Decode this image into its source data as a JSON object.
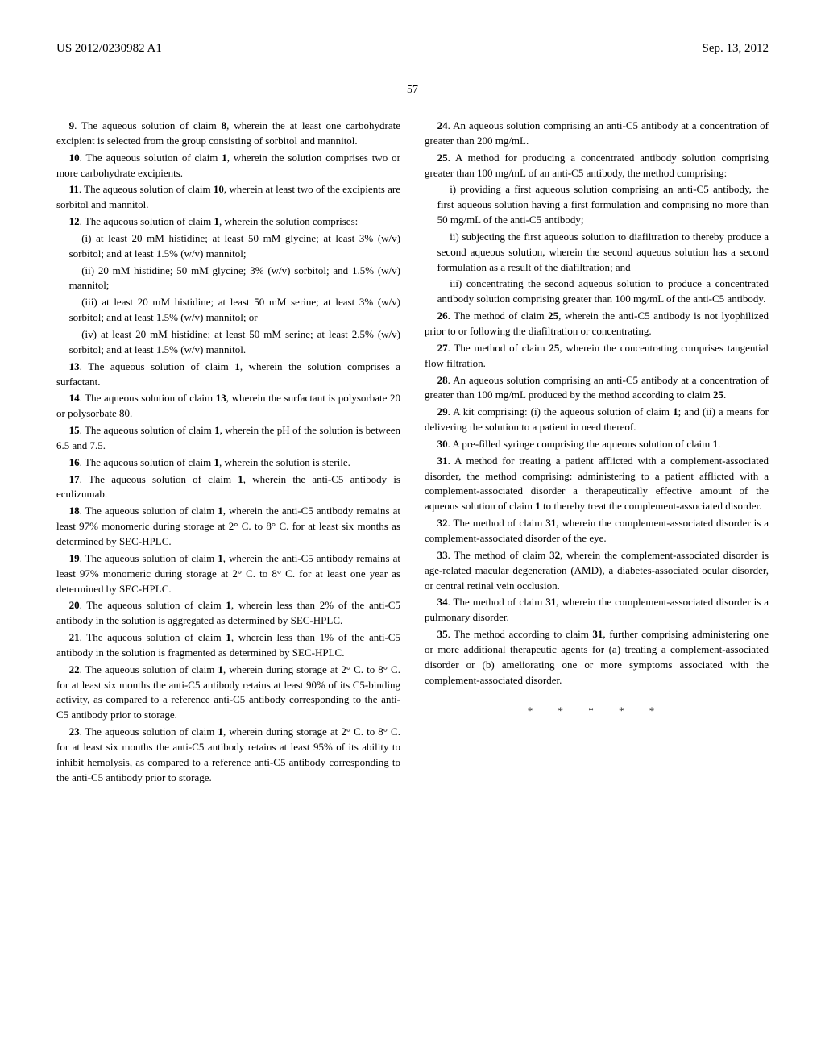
{
  "header": {
    "left": "US 2012/0230982 A1",
    "right": "Sep. 13, 2012"
  },
  "page_number": "57",
  "columns": {
    "left": [
      {
        "type": "claim",
        "num": "9",
        "text": ". The aqueous solution of claim ",
        "ref": "8",
        "tail": ", wherein the at least one carbohydrate excipient is selected from the group consisting of sorbitol and mannitol."
      },
      {
        "type": "claim",
        "num": "10",
        "text": ". The aqueous solution of claim ",
        "ref": "1",
        "tail": ", wherein the solution comprises two or more carbohydrate excipients."
      },
      {
        "type": "claim",
        "num": "11",
        "text": ". The aqueous solution of claim ",
        "ref": "10",
        "tail": ", wherein at least two of the excipients are sorbitol and mannitol."
      },
      {
        "type": "claim",
        "num": "12",
        "text": ". The aqueous solution of claim ",
        "ref": "1",
        "tail": ", wherein the solution comprises:"
      },
      {
        "type": "sub",
        "text": "(i) at least 20 mM histidine; at least 50 mM glycine; at least 3% (w/v) sorbitol; and at least 1.5% (w/v) mannitol;"
      },
      {
        "type": "sub",
        "text": "(ii) 20 mM histidine; 50 mM glycine; 3% (w/v) sorbitol; and 1.5% (w/v) mannitol;"
      },
      {
        "type": "sub",
        "text": "(iii) at least 20 mM histidine; at least 50 mM serine; at least 3% (w/v) sorbitol; and at least 1.5% (w/v) mannitol; or"
      },
      {
        "type": "sub",
        "text": "(iv) at least 20 mM histidine; at least 50 mM serine; at least 2.5% (w/v) sorbitol; and at least 1.5% (w/v) mannitol."
      },
      {
        "type": "claim",
        "num": "13",
        "text": ". The aqueous solution of claim ",
        "ref": "1",
        "tail": ", wherein the solution comprises a surfactant."
      },
      {
        "type": "claim",
        "num": "14",
        "text": ". The aqueous solution of claim ",
        "ref": "13",
        "tail": ", wherein the surfactant is polysorbate 20 or polysorbate 80."
      },
      {
        "type": "claim",
        "num": "15",
        "text": ". The aqueous solution of claim ",
        "ref": "1",
        "tail": ", wherein the pH of the solution is between 6.5 and 7.5."
      },
      {
        "type": "claim",
        "num": "16",
        "text": ". The aqueous solution of claim ",
        "ref": "1",
        "tail": ", wherein the solution is sterile."
      },
      {
        "type": "claim",
        "num": "17",
        "text": ". The aqueous solution of claim ",
        "ref": "1",
        "tail": ", wherein the anti-C5 antibody is eculizumab."
      },
      {
        "type": "claim",
        "num": "18",
        "text": ". The aqueous solution of claim ",
        "ref": "1",
        "tail": ", wherein the anti-C5 antibody remains at least 97% monomeric during storage at 2° C. to 8° C. for at least six months as determined by SEC-HPLC."
      },
      {
        "type": "claim",
        "num": "19",
        "text": ". The aqueous solution of claim ",
        "ref": "1",
        "tail": ", wherein the anti-C5 antibody remains at least 97% monomeric during storage at 2° C. to 8° C. for at least one year as determined by SEC-HPLC."
      },
      {
        "type": "claim",
        "num": "20",
        "text": ". The aqueous solution of claim ",
        "ref": "1",
        "tail": ", wherein less than 2% of the anti-C5 antibody in the solution is aggregated as determined by SEC-HPLC."
      },
      {
        "type": "claim",
        "num": "21",
        "text": ". The aqueous solution of claim ",
        "ref": "1",
        "tail": ", wherein less than 1% of the anti-C5 antibody in the solution is fragmented as determined by SEC-HPLC."
      },
      {
        "type": "claim",
        "num": "22",
        "text": ". The aqueous solution of claim ",
        "ref": "1",
        "tail": ", wherein during storage at 2° C. to 8° C. for at least six months the anti-C5 antibody retains at least 90% of its C5-binding activity, as compared to a reference anti-C5 antibody corresponding to the anti-C5 antibody prior to storage."
      },
      {
        "type": "claim",
        "num": "23",
        "text": ". The aqueous solution of claim ",
        "ref": "1",
        "tail": ", wherein during storage at 2° C. to 8° C. for at least six months the anti-C5 antibody retains at least 95% of its ability to inhibit hemolysis, as compared to a reference anti-C5 antibody corresponding to the anti-C5 antibody prior to storage."
      }
    ],
    "right": [
      {
        "type": "claim",
        "num": "24",
        "text": ". An aqueous solution comprising an anti-C5 antibody at a concentration of greater than 200 mg/mL.",
        "ref": "",
        "tail": ""
      },
      {
        "type": "claim",
        "num": "25",
        "text": ". A method for producing a concentrated antibody solution comprising greater than 100 mg/mL of an anti-C5 antibody, the method comprising:",
        "ref": "",
        "tail": ""
      },
      {
        "type": "sub",
        "text": "i) providing a first aqueous solution comprising an anti-C5 antibody, the first aqueous solution having a first formulation and comprising no more than 50 mg/mL of the anti-C5 antibody;"
      },
      {
        "type": "sub",
        "text": "ii) subjecting the first aqueous solution to diafiltration to thereby produce a second aqueous solution, wherein the second aqueous solution has a second formulation as a result of the diafiltration; and"
      },
      {
        "type": "sub",
        "text": "iii) concentrating the second aqueous solution to produce a concentrated antibody solution comprising greater than 100 mg/mL of the anti-C5 antibody."
      },
      {
        "type": "claim",
        "num": "26",
        "text": ". The method of claim ",
        "ref": "25",
        "tail": ", wherein the anti-C5 antibody is not lyophilized prior to or following the diafiltration or concentrating."
      },
      {
        "type": "claim",
        "num": "27",
        "text": ". The method of claim ",
        "ref": "25",
        "tail": ", wherein the concentrating comprises tangential flow filtration."
      },
      {
        "type": "claim",
        "num": "28",
        "text": ". An aqueous solution comprising an anti-C5 antibody at a concentration of greater than 100 mg/mL produced by the method according to claim ",
        "ref": "25",
        "tail": "."
      },
      {
        "type": "claim",
        "num": "29",
        "text": ". A kit comprising: (i) the aqueous solution of claim ",
        "ref": "1",
        "tail": "; and (ii) a means for delivering the solution to a patient in need thereof."
      },
      {
        "type": "claim",
        "num": "30",
        "text": ". A pre-filled syringe comprising the aqueous solution of claim ",
        "ref": "1",
        "tail": "."
      },
      {
        "type": "claim",
        "num": "31",
        "text": ". A method for treating a patient afflicted with a complement-associated disorder, the method comprising: administering to a patient afflicted with a complement-associated disorder a therapeutically effective amount of the aqueous solution of claim ",
        "ref": "1",
        "tail": " to thereby treat the complement-associated disorder."
      },
      {
        "type": "claim",
        "num": "32",
        "text": ". The method of claim ",
        "ref": "31",
        "tail": ", wherein the complement-associated disorder is a complement-associated disorder of the eye."
      },
      {
        "type": "claim",
        "num": "33",
        "text": ". The method of claim ",
        "ref": "32",
        "tail": ", wherein the complement-associated disorder is age-related macular degeneration (AMD), a diabetes-associated ocular disorder, or central retinal vein occlusion."
      },
      {
        "type": "claim",
        "num": "34",
        "text": ". The method of claim ",
        "ref": "31",
        "tail": ", wherein the complement-associated disorder is a pulmonary disorder."
      },
      {
        "type": "claim",
        "num": "35",
        "text": ". The method according to claim ",
        "ref": "31",
        "tail": ", further comprising administering one or more additional therapeutic agents for (a) treating a complement-associated disorder or (b) ameliorating one or more symptoms associated with the complement-associated disorder."
      }
    ]
  },
  "end_marks": "* * * * *"
}
